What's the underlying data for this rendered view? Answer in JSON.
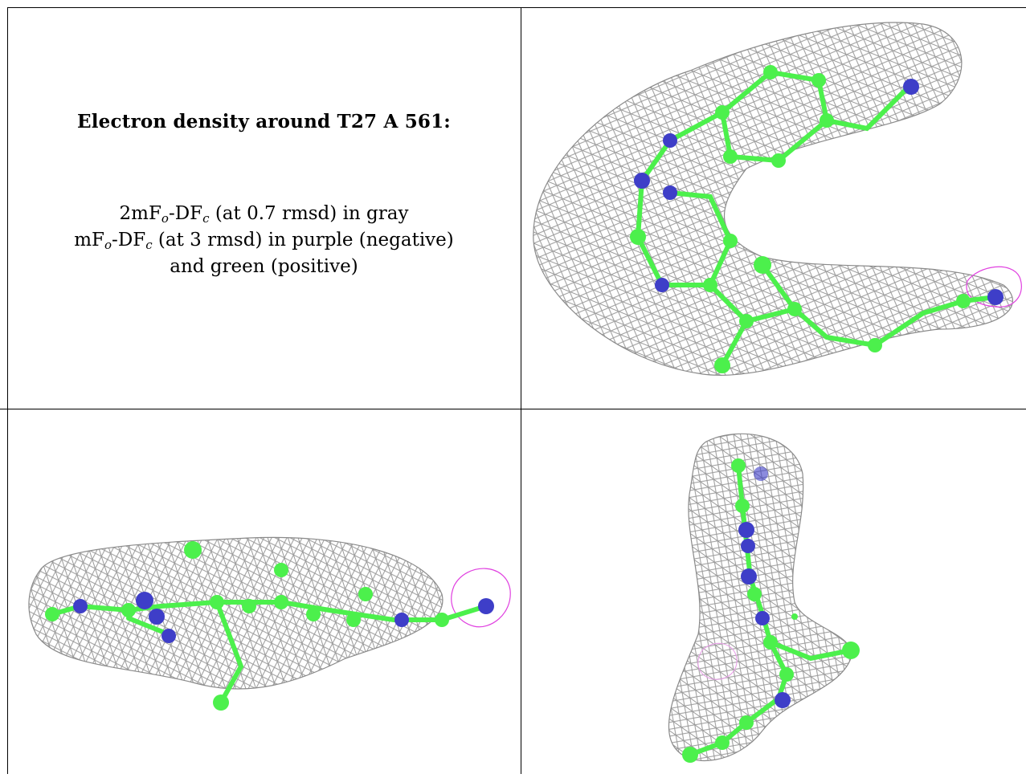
{
  "caption": {
    "title": "Electron density around T27 A 561:",
    "line1": {
      "pre": "2mF",
      "sub1": "o",
      "mid": "-DF",
      "sub2": "c",
      "post": " (at 0.7 rmsd) in gray"
    },
    "line2": {
      "pre": "mF",
      "sub1": "o",
      "mid": "-DF",
      "sub2": "c",
      "post": " (at 3 rmsd) in purple (negative)"
    },
    "line3": "and green (positive)"
  },
  "colors": {
    "mesh_gray": "#9a9a9a",
    "carbon_green": "#4cf04c",
    "nitrogen_blue": "#3e3ec8",
    "negative_purple": "#e040e0",
    "border": "#000000"
  },
  "panels": [
    {
      "id": "top-right",
      "view": "face-on"
    },
    {
      "id": "bottom-left",
      "view": "side-on"
    },
    {
      "id": "bottom-right",
      "view": "end-on"
    }
  ]
}
